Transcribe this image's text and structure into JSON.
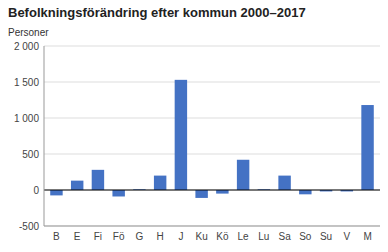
{
  "chart_data": {
    "type": "bar",
    "title": "Befolkningsförändring efter kommun 2000–2017",
    "ylabel": "Personer",
    "categories": [
      "B",
      "E",
      "Fi",
      "Fö",
      "G",
      "H",
      "J",
      "Ku",
      "Kö",
      "Le",
      "Lu",
      "Sa",
      "So",
      "Su",
      "V",
      "M"
    ],
    "values": [
      -75,
      130,
      280,
      -90,
      10,
      200,
      1530,
      -110,
      -50,
      420,
      10,
      200,
      -60,
      -20,
      -20,
      1180
    ],
    "color": "#4472C4",
    "ylim": [
      -500,
      2000
    ],
    "yticks": [
      -500,
      0,
      500,
      {
        "value": 1000,
        "label": "1 000"
      },
      {
        "value": 1500,
        "label": "1 500"
      },
      {
        "value": 2000,
        "label": "2 000"
      }
    ],
    "grid": true
  }
}
